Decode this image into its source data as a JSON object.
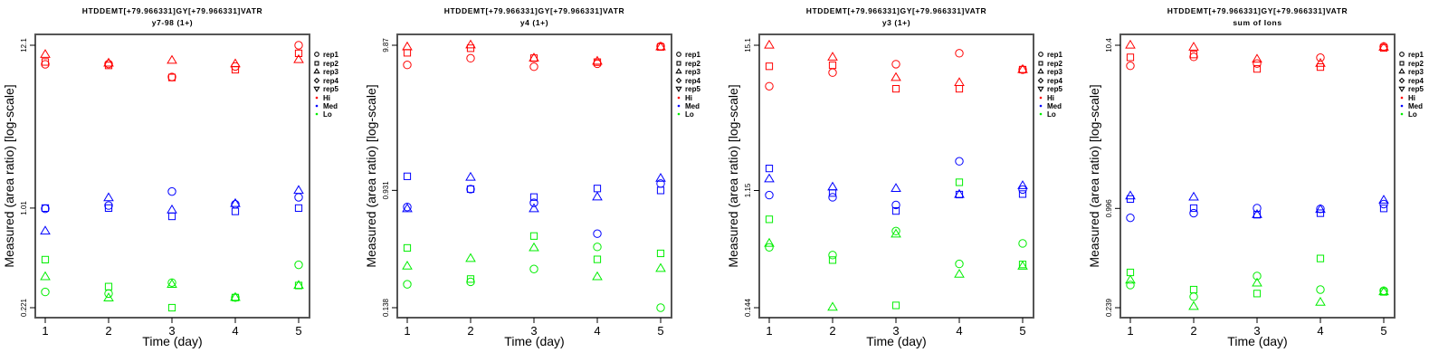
{
  "colors": {
    "Hi": "#ff0000",
    "Med": "#0000ff",
    "Lo": "#00ee00"
  },
  "legend": {
    "items": [
      {
        "label": "rep1",
        "symbol": "circle"
      },
      {
        "label": "rep2",
        "symbol": "square"
      },
      {
        "label": "rep3",
        "symbol": "triangle"
      },
      {
        "label": "rep4",
        "symbol": "diamond"
      },
      {
        "label": "rep5",
        "symbol": "triangle-down"
      },
      {
        "label": "Hi",
        "symbol": "dot",
        "color": "#ff0000"
      },
      {
        "label": "Med",
        "symbol": "dot",
        "color": "#0000ff"
      },
      {
        "label": "Lo",
        "symbol": "dot",
        "color": "#00ee00"
      }
    ]
  },
  "chart_data": [
    {
      "type": "scatter",
      "title": "HTDDEMT[+79.966331]GY[+79.966331]VATR",
      "subtitle": "y7-98 (1+)",
      "xlabel": "Time (day)",
      "ylabel": "Measured (area ratio) [log-scale]",
      "yscale": "log",
      "x": [
        1,
        2,
        3,
        4,
        5
      ],
      "xticks": [
        "1",
        "2",
        "3",
        "4",
        "5"
      ],
      "yticks": [
        "0.221",
        "1.01",
        "12.1"
      ],
      "ylim": [
        0.221,
        12.1
      ],
      "legend_position": "right",
      "series": [
        {
          "group": "Hi",
          "rep": "rep1",
          "symbol": "circle",
          "values": [
            9.05,
            9.1,
            7.46,
            8.76,
            12.1
          ]
        },
        {
          "group": "Hi",
          "rep": "rep2",
          "symbol": "square",
          "values": [
            9.38,
            8.9,
            7.4,
            8.33,
            10.7
          ]
        },
        {
          "group": "Hi",
          "rep": "rep3",
          "symbol": "triangle",
          "values": [
            10.5,
            9.2,
            9.6,
            9.1,
            9.7
          ]
        },
        {
          "group": "Med",
          "rep": "rep1",
          "symbol": "circle",
          "values": [
            1.0,
            1.05,
            1.3,
            1.07,
            1.19
          ]
        },
        {
          "group": "Med",
          "rep": "rep2",
          "symbol": "square",
          "values": [
            1.01,
            1.01,
            0.89,
            0.96,
            1.01
          ]
        },
        {
          "group": "Med",
          "rep": "rep3",
          "symbol": "triangle",
          "values": [
            0.71,
            1.18,
            0.98,
            1.08,
            1.32
          ]
        },
        {
          "group": "Lo",
          "rep": "rep1",
          "symbol": "circle",
          "values": [
            0.281,
            0.274,
            0.324,
            0.258,
            0.425
          ]
        },
        {
          "group": "Lo",
          "rep": "rep2",
          "symbol": "square",
          "values": [
            0.46,
            0.305,
            0.221,
            0.258,
            0.31
          ]
        },
        {
          "group": "Lo",
          "rep": "rep3",
          "symbol": "triangle",
          "values": [
            0.354,
            0.256,
            0.315,
            0.258,
            0.31
          ]
        }
      ]
    },
    {
      "type": "scatter",
      "title": "HTDDEMT[+79.966331]GY[+79.966331]VATR",
      "subtitle": "y4 (1+)",
      "xlabel": "Time (day)",
      "ylabel": "Measured (area ratio) [log-scale]",
      "yscale": "log",
      "x": [
        1,
        2,
        3,
        4,
        5
      ],
      "xticks": [
        "1",
        "2",
        "3",
        "4",
        "5"
      ],
      "yticks": [
        "0.138",
        "0.931",
        "9.87"
      ],
      "ylim": [
        0.138,
        9.87
      ],
      "legend_position": "right",
      "series": [
        {
          "group": "Hi",
          "rep": "rep1",
          "symbol": "circle",
          "values": [
            7.17,
            7.99,
            6.96,
            7.3,
            9.7
          ]
        },
        {
          "group": "Hi",
          "rep": "rep2",
          "symbol": "square",
          "values": [
            8.73,
            9.4,
            8.0,
            7.5,
            9.6
          ]
        },
        {
          "group": "Hi",
          "rep": "rep3",
          "symbol": "triangle",
          "values": [
            9.6,
            9.9,
            8.0,
            7.6,
            9.6
          ]
        },
        {
          "group": "Med",
          "rep": "rep1",
          "symbol": "circle",
          "values": [
            0.71,
            0.95,
            0.76,
            0.46,
            1.04
          ]
        },
        {
          "group": "Med",
          "rep": "rep2",
          "symbol": "square",
          "values": [
            1.17,
            0.95,
            0.835,
            0.96,
            0.93
          ]
        },
        {
          "group": "Med",
          "rep": "rep3",
          "symbol": "triangle",
          "values": [
            0.69,
            1.15,
            0.69,
            0.835,
            1.13
          ]
        },
        {
          "group": "Lo",
          "rep": "rep1",
          "symbol": "circle",
          "values": [
            0.202,
            0.21,
            0.259,
            0.371,
            0.138
          ]
        },
        {
          "group": "Lo",
          "rep": "rep2",
          "symbol": "square",
          "values": [
            0.365,
            0.22,
            0.443,
            0.303,
            0.334
          ]
        },
        {
          "group": "Lo",
          "rep": "rep3",
          "symbol": "triangle",
          "values": [
            0.271,
            0.307,
            0.365,
            0.228,
            0.261
          ]
        }
      ]
    },
    {
      "type": "scatter",
      "title": "HTDDEMT[+79.966331]GY[+79.966331]VATR",
      "subtitle": "y3 (1+)",
      "xlabel": "Time (day)",
      "ylabel": "Measured (area ratio) [log-scale]",
      "yscale": "log",
      "x": [
        1,
        2,
        3,
        4,
        5
      ],
      "xticks": [
        "1",
        "2",
        "3",
        "4",
        "5"
      ],
      "yticks": [
        "0.144",
        "1.15",
        "15.1"
      ],
      "ylim": [
        0.144,
        15.1
      ],
      "legend_position": "right",
      "series": [
        {
          "group": "Hi",
          "rep": "rep1",
          "symbol": "circle",
          "values": [
            7.3,
            9.3,
            10.8,
            13.1,
            9.8
          ]
        },
        {
          "group": "Hi",
          "rep": "rep2",
          "symbol": "square",
          "values": [
            10.4,
            10.6,
            6.98,
            6.98,
            9.8
          ]
        },
        {
          "group": "Hi",
          "rep": "rep3",
          "symbol": "triangle",
          "values": [
            15.1,
            12.2,
            8.5,
            7.77,
            9.8
          ]
        },
        {
          "group": "Med",
          "rep": "rep1",
          "symbol": "circle",
          "values": [
            1.06,
            1.02,
            0.89,
            1.93,
            1.17
          ]
        },
        {
          "group": "Med",
          "rep": "rep2",
          "symbol": "square",
          "values": [
            1.7,
            1.1,
            0.8,
            1.07,
            1.08
          ]
        },
        {
          "group": "Med",
          "rep": "rep3",
          "symbol": "triangle",
          "values": [
            1.41,
            1.22,
            1.19,
            1.07,
            1.25
          ]
        },
        {
          "group": "Lo",
          "rep": "rep1",
          "symbol": "circle",
          "values": [
            0.42,
            0.366,
            0.56,
            0.313,
            0.45
          ]
        },
        {
          "group": "Lo",
          "rep": "rep2",
          "symbol": "square",
          "values": [
            0.69,
            0.335,
            0.15,
            1.33,
            0.31
          ]
        },
        {
          "group": "Lo",
          "rep": "rep3",
          "symbol": "triangle",
          "values": [
            0.45,
            0.145,
            0.53,
            0.26,
            0.3
          ]
        }
      ]
    },
    {
      "type": "scatter",
      "title": "HTDDEMT[+79.966331]GY[+79.966331]VATR",
      "subtitle": "sum of Ions",
      "xlabel": "Time (day)",
      "ylabel": "Measured (area ratio) [log-scale]",
      "yscale": "log",
      "x": [
        1,
        2,
        3,
        4,
        5
      ],
      "xticks": [
        "1",
        "2",
        "3",
        "4",
        "5"
      ],
      "yticks": [
        "0.239",
        "0.996",
        "10.4"
      ],
      "ylim": [
        0.239,
        10.4
      ],
      "legend_position": "right",
      "series": [
        {
          "group": "Hi",
          "rep": "rep1",
          "symbol": "circle",
          "values": [
            7.74,
            8.8,
            8.0,
            8.7,
            10.2
          ]
        },
        {
          "group": "Hi",
          "rep": "rep2",
          "symbol": "square",
          "values": [
            8.74,
            9.1,
            7.4,
            7.6,
            10.0
          ]
        },
        {
          "group": "Hi",
          "rep": "rep3",
          "symbol": "triangle",
          "values": [
            10.4,
            10.1,
            8.5,
            8.0,
            10.1
          ]
        },
        {
          "group": "Med",
          "rep": "rep1",
          "symbol": "circle",
          "values": [
            0.87,
            0.93,
            1.0,
            0.99,
            1.06
          ]
        },
        {
          "group": "Med",
          "rep": "rep2",
          "symbol": "square",
          "values": [
            1.14,
            1.0,
            0.91,
            0.93,
            0.996
          ]
        },
        {
          "group": "Med",
          "rep": "rep3",
          "symbol": "triangle",
          "values": [
            1.19,
            1.17,
            0.91,
            0.98,
            1.12
          ]
        },
        {
          "group": "Lo",
          "rep": "rep1",
          "symbol": "circle",
          "values": [
            0.331,
            0.28,
            0.377,
            0.31,
            0.305
          ]
        },
        {
          "group": "Lo",
          "rep": "rep2",
          "symbol": "square",
          "values": [
            0.397,
            0.31,
            0.293,
            0.485,
            0.3
          ]
        },
        {
          "group": "Lo",
          "rep": "rep3",
          "symbol": "triangle",
          "values": [
            0.355,
            0.243,
            0.34,
            0.258,
            0.3
          ]
        }
      ]
    }
  ]
}
